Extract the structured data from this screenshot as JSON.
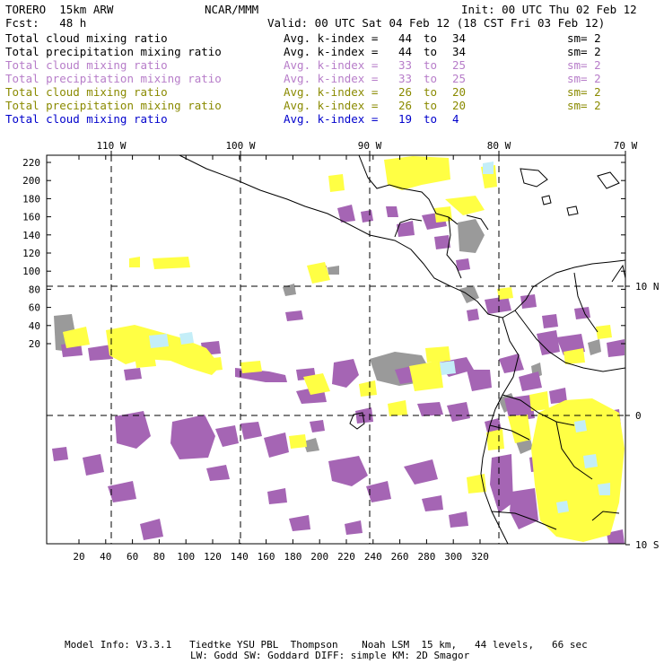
{
  "header": {
    "model": "TORERO  15km ARW",
    "org": "NCAR/MMM",
    "init": "Init: 00 UTC Thu 02 Feb 12",
    "fcst": "Fcst:   48 h",
    "valid": "Valid: 00 UTC Sat 04 Feb 12 (18 CST Fri 03 Feb 12)"
  },
  "legend": [
    {
      "field": "Total cloud mixing ratio",
      "k_label": "Avg. k-index =",
      "k_from": "44",
      "k_to": "34",
      "to": "to",
      "sm": "sm= 2",
      "color": "#000000"
    },
    {
      "field": "Total precipitation mixing ratio",
      "k_label": "Avg. k-index =",
      "k_from": "44",
      "k_to": "34",
      "to": "to",
      "sm": "sm= 2",
      "color": "#000000"
    },
    {
      "field": "Total cloud mixing ratio",
      "k_label": "Avg. k-index =",
      "k_from": "33",
      "k_to": "25",
      "to": "to",
      "sm": "sm= 2",
      "color": "#b77dc9"
    },
    {
      "field": "Total precipitation mixing ratio",
      "k_label": "Avg. k-index =",
      "k_from": "33",
      "k_to": "25",
      "to": "to",
      "sm": "sm= 2",
      "color": "#b77dc9"
    },
    {
      "field": "Total cloud mixing ratio",
      "k_label": "Avg. k-index =",
      "k_from": "26",
      "k_to": "20",
      "to": "to",
      "sm": "sm= 2",
      "color": "#8a8a00"
    },
    {
      "field": "Total precipitation mixing ratio",
      "k_label": "Avg. k-index =",
      "k_from": "26",
      "k_to": "20",
      "to": "to",
      "sm": "sm= 2",
      "color": "#8a8a00"
    },
    {
      "field": "Total cloud mixing ratio",
      "k_label": "Avg. k-index =",
      "k_from": "19",
      "k_to": "4",
      "to": "to",
      "sm": "",
      "color": "#0000cc"
    }
  ],
  "map": {
    "top_lon_labels": [
      "110 W",
      "100 W",
      "90 W",
      "80 W",
      "70 W"
    ],
    "right_lat_labels": [
      "10 N",
      "0",
      "10 S"
    ],
    "left_ticks": [
      "220",
      "200",
      "180",
      "160",
      "140",
      "120",
      "100",
      "80",
      "60",
      "40",
      "20"
    ],
    "bottom_ticks": [
      "20",
      "40",
      "60",
      "80",
      "100",
      "120",
      "140",
      "160",
      "180",
      "200",
      "220",
      "240",
      "260",
      "280",
      "300",
      "320"
    ],
    "colors": {
      "gray": "#9a9a9a",
      "purple": "#a565b4",
      "yellow": "#ffff44",
      "lightblue": "#c4eef8",
      "border": "#000000",
      "grid": "#000000"
    }
  },
  "footer": {
    "line1": "Model Info: V3.3.1   Tiedtke YSU PBL  Thompson    Noah LSM  15 km,   44 levels,   66 sec",
    "line2": "LW: Godd SW: Goddard DIFF: simple KM: 2D Smagor"
  }
}
